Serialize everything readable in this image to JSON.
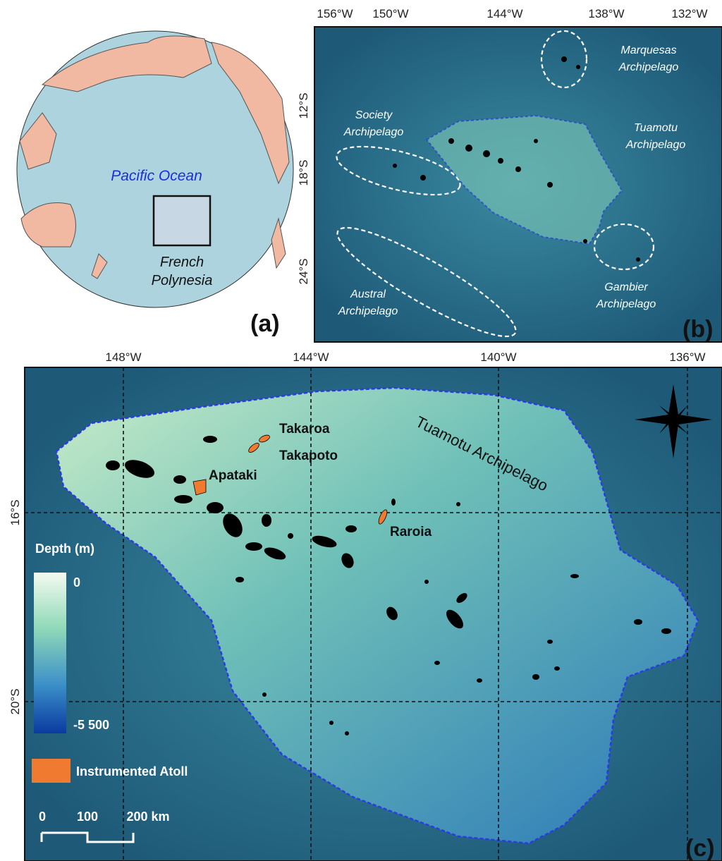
{
  "panel_a": {
    "label": "(a)",
    "ocean": "Pacific Ocean",
    "region": [
      "French",
      "Polynesia"
    ]
  },
  "panel_b": {
    "label": "(b)",
    "lon_ticks": [
      "156°W",
      "150°W",
      "144°W",
      "138°W",
      "132°W"
    ],
    "lat_ticks": [
      "12°S",
      "18°S",
      "24°S"
    ],
    "archipelagos": [
      {
        "lines": [
          "Marquesas",
          "Archipelago"
        ]
      },
      {
        "lines": [
          "Society",
          "Archipelago"
        ]
      },
      {
        "lines": [
          "Tuamotu",
          "Archipelago"
        ]
      },
      {
        "lines": [
          "Austral",
          "Archipelago"
        ]
      },
      {
        "lines": [
          "Gambier",
          "Archipelago"
        ]
      }
    ]
  },
  "panel_c": {
    "label": "(c)",
    "lon_ticks": [
      "148°W",
      "144°W",
      "140°W",
      "136°W"
    ],
    "lat_ticks": [
      "16°S",
      "20°S"
    ],
    "region": "Tuamotu Archipelago",
    "atolls": [
      "Takaroa",
      "Takapoto",
      "Apataki",
      "Raroia"
    ],
    "legend": {
      "title": "Depth (m)",
      "max": "0",
      "min": "-5 500",
      "instrumented": "Instrumented Atoll"
    },
    "scale": [
      "0",
      "100",
      "200 km"
    ]
  }
}
